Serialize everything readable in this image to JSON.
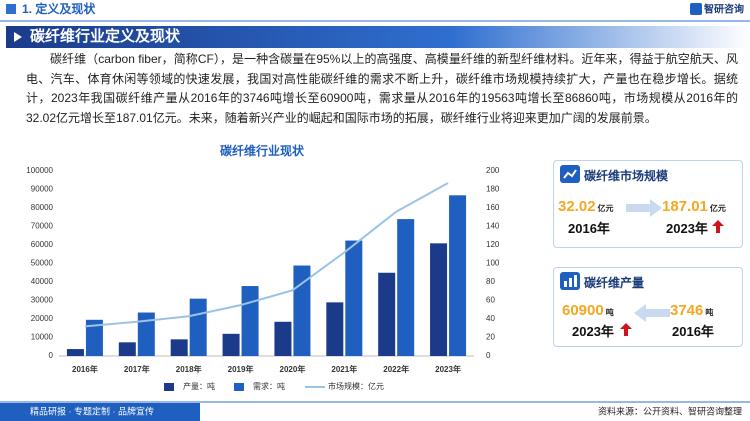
{
  "header": {
    "section": "1. 定义及现状",
    "logo": "智研咨询"
  },
  "title": "碳纤维行业定义及现状",
  "paragraph": "碳纤维（carbon fiber，简称CF），是一种含碳量在95%以上的高强度、高模量纤维的新型纤维材料。近年来，得益于航空航天、风电、汽车、体育休闲等领域的快速发展，我国对高性能碳纤维的需求不断上升，碳纤维市场规模持续扩大，产量也在稳步增长。据统计，2023年我国碳纤维产量从2016年的3746吨增长至60900吨，需求量从2016年的19563吨增长至86860吨，市场规模从2016年的32.02亿元增长至187.01亿元。未来，随着新兴产业的崛起和国际市场的拓展，碳纤维行业将迎来更加广阔的发展前景。",
  "chart_data": {
    "type": "bar",
    "title": "碳纤维行业现状",
    "categories": [
      "2016年",
      "2017年",
      "2018年",
      "2019年",
      "2020年",
      "2021年",
      "2022年",
      "2023年"
    ],
    "series": [
      {
        "name": "产量：吨",
        "type": "bar",
        "color": "#1b3b8a",
        "values": [
          3746,
          7400,
          9000,
          12000,
          18500,
          29000,
          45000,
          60900
        ]
      },
      {
        "name": "需求：吨",
        "type": "bar",
        "color": "#1f5fbf",
        "values": [
          19563,
          23500,
          31000,
          37800,
          48900,
          62400,
          74000,
          86860
        ]
      },
      {
        "name": "市场规模：亿元",
        "type": "line",
        "axis": "y2",
        "color": "#9cc3e6",
        "values": [
          32.02,
          37,
          43,
          55,
          71,
          112,
          156,
          187.01
        ]
      }
    ],
    "ylim": [
      0,
      100000
    ],
    "yticks": [
      0,
      10000,
      20000,
      30000,
      40000,
      50000,
      60000,
      70000,
      80000,
      90000,
      100000
    ],
    "y2lim": [
      0,
      200
    ],
    "y2ticks": [
      0,
      20,
      40,
      60,
      80,
      100,
      120,
      140,
      160,
      180,
      200
    ],
    "legend": "bottom"
  },
  "panels": [
    {
      "title": "碳纤维市场规模",
      "items": [
        {
          "value": 32.02,
          "unit": "亿元",
          "year": "2016年"
        },
        {
          "value": 187.01,
          "unit": "亿元",
          "year": "2023年"
        }
      ]
    },
    {
      "title": "碳纤维产量",
      "items": [
        {
          "value": 60900,
          "unit": "吨",
          "year": "2023年"
        },
        {
          "value": 3746,
          "unit": "吨",
          "year": "2016年"
        }
      ]
    }
  ],
  "footer": {
    "slogan": "精品研报 · 专题定制 · 品牌宣传",
    "source": "资料来源：公开资料、智研咨询整理"
  }
}
